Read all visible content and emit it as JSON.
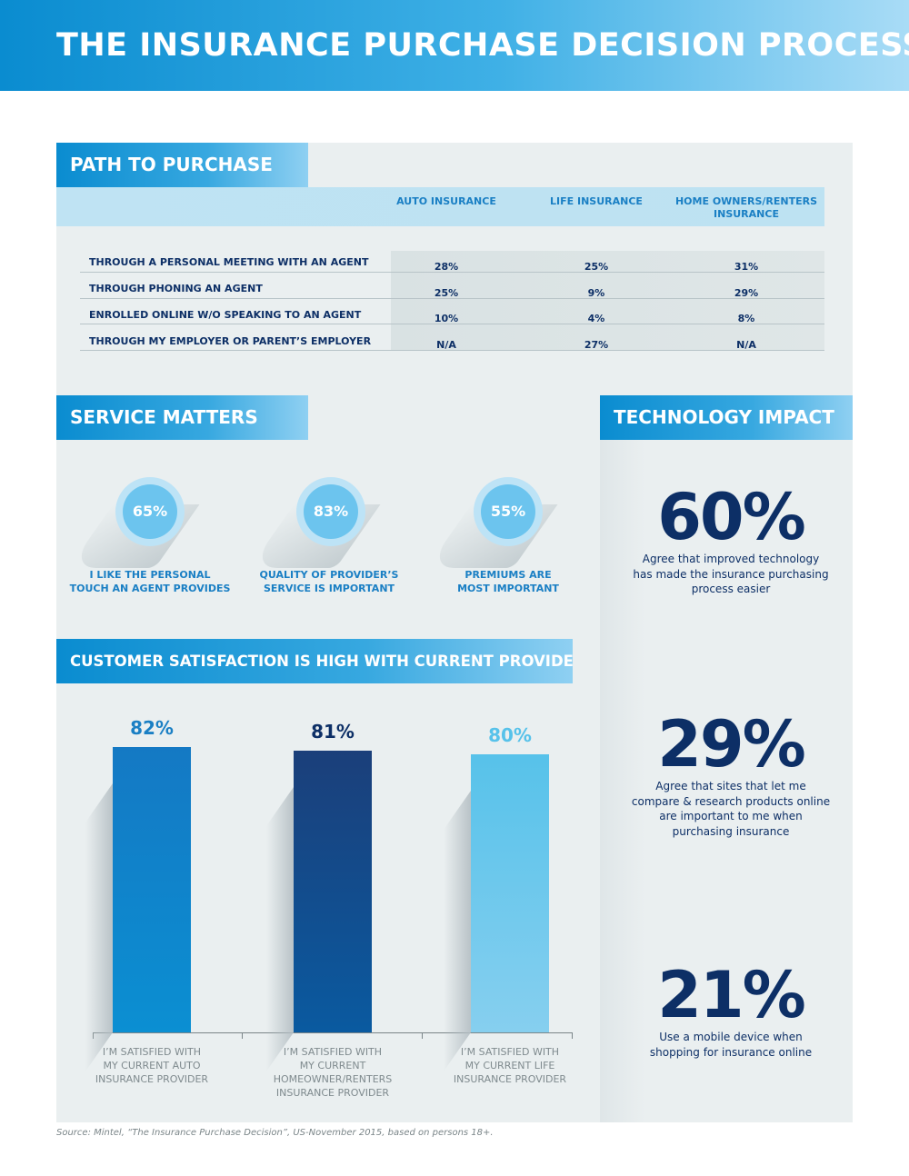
{
  "title": "THE INSURANCE PURCHASE DECISION PROCESS",
  "path_to_purchase": {
    "heading": "PATH TO PURCHASE",
    "columns": [
      "AUTO INSURANCE",
      "LIFE INSURANCE",
      "HOME OWNERS/RENTERS INSURANCE"
    ],
    "rows": [
      {
        "label": "THROUGH A PERSONAL MEETING WITH AN AGENT",
        "values": [
          "28%",
          "25%",
          "31%"
        ]
      },
      {
        "label": "THROUGH PHONING AN AGENT",
        "values": [
          "25%",
          "9%",
          "29%"
        ]
      },
      {
        "label": "ENROLLED ONLINE W/O SPEAKING TO AN AGENT",
        "values": [
          "10%",
          "4%",
          "8%"
        ]
      },
      {
        "label": "THROUGH MY EMPLOYER OR PARENT’S EMPLOYER",
        "values": [
          "N/A",
          "27%",
          "N/A"
        ]
      }
    ]
  },
  "service_matters": {
    "heading": "SERVICE MATTERS",
    "items": [
      {
        "value": "65%",
        "line1": "I LIKE THE PERSONAL",
        "line2": "TOUCH AN AGENT PROVIDES"
      },
      {
        "value": "83%",
        "line1": "QUALITY OF PROVIDER’S",
        "line2": "SERVICE IS IMPORTANT"
      },
      {
        "value": "55%",
        "line1": "PREMIUMS ARE",
        "line2": "MOST IMPORTANT"
      }
    ]
  },
  "customer_satisfaction": {
    "heading": "CUSTOMER SATISFACTION IS HIGH WITH CURRENT PROVIDERS"
  },
  "technology_impact": {
    "heading": "TECHNOLOGY IMPACT",
    "stats": [
      {
        "value": "60%",
        "lines": [
          "Agree that improved technology",
          "has made the insurance purchasing",
          "process easier"
        ]
      },
      {
        "value": "29%",
        "lines": [
          "Agree that sites that let me",
          "compare & research products online",
          "are important to me when",
          "purchasing insurance"
        ]
      },
      {
        "value": "21%",
        "lines": [
          "Use a mobile device when",
          "shopping for insurance online"
        ]
      }
    ]
  },
  "source": "Source: Mintel, “The Insurance Purchase Decision”, US-November 2015, based on persons 18+.",
  "colors": {
    "auto_bar": "#1479c4",
    "homeowner_bar": "#1b3f7a",
    "life_bar": "#57c2ea",
    "accent_blue": "#1a7fc4",
    "navy": "#0d2f66"
  },
  "chart_data": {
    "type": "bar",
    "title": "CUSTOMER SATISFACTION IS HIGH WITH CURRENT PROVIDERS",
    "categories": [
      [
        "I’M SATISFIED WITH",
        "MY CURRENT AUTO",
        "INSURANCE PROVIDER"
      ],
      [
        "I’M SATISFIED WITH",
        "MY CURRENT",
        "HOMEOWNER/RENTERS",
        "INSURANCE PROVIDER"
      ],
      [
        "I’M SATISFIED WITH",
        "MY CURRENT LIFE",
        "INSURANCE PROVIDER"
      ]
    ],
    "values": [
      82,
      81,
      80
    ],
    "value_labels": [
      "82%",
      "81%",
      "80%"
    ],
    "ylim": [
      0,
      100
    ],
    "grid": false
  }
}
